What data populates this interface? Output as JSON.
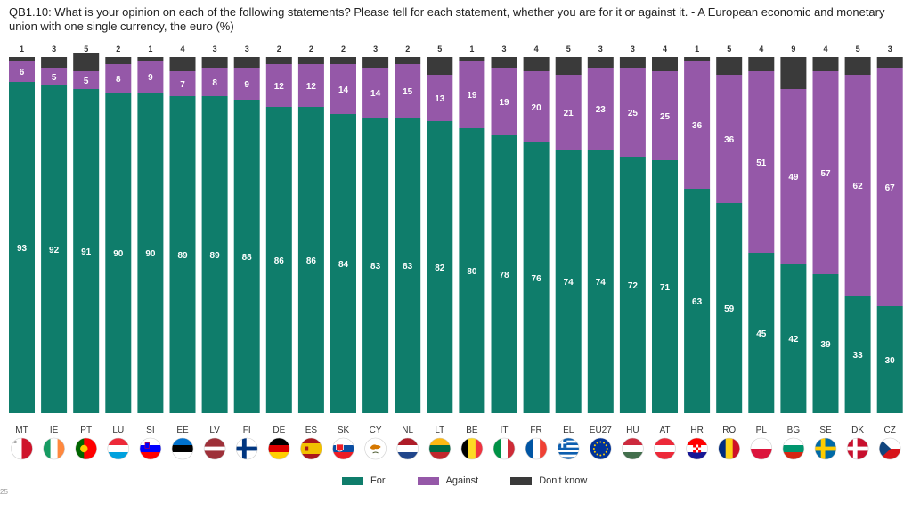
{
  "chart_data": {
    "type": "bar",
    "stacked": true,
    "title": "QB1.10: What is your opinion on each of the following statements? Please tell for each statement, whether you are for it or against it. - A European economic and monetary union with one single currency, the euro (%)",
    "categories": [
      "MT",
      "IE",
      "PT",
      "LU",
      "SI",
      "EE",
      "LV",
      "FI",
      "DE",
      "ES",
      "SK",
      "CY",
      "NL",
      "LT",
      "BE",
      "IT",
      "FR",
      "EL",
      "EU27",
      "HU",
      "AT",
      "HR",
      "RO",
      "PL",
      "BG",
      "SE",
      "DK",
      "CZ"
    ],
    "series": [
      {
        "name": "For",
        "color": "#0f7d6b",
        "values": [
          93,
          92,
          91,
          90,
          90,
          89,
          89,
          88,
          86,
          86,
          84,
          83,
          83,
          82,
          80,
          78,
          76,
          74,
          74,
          72,
          71,
          63,
          59,
          45,
          42,
          39,
          33,
          30
        ]
      },
      {
        "name": "Against",
        "color": "#9558a8",
        "values": [
          6,
          5,
          5,
          8,
          9,
          7,
          8,
          9,
          12,
          12,
          14,
          14,
          15,
          13,
          19,
          19,
          20,
          21,
          23,
          25,
          25,
          36,
          36,
          51,
          49,
          57,
          62,
          67
        ]
      },
      {
        "name": "Don't know",
        "color": "#3a3a3a",
        "values": [
          1,
          3,
          5,
          2,
          1,
          4,
          3,
          3,
          2,
          2,
          2,
          3,
          2,
          5,
          1,
          3,
          4,
          5,
          3,
          3,
          4,
          1,
          5,
          4,
          9,
          4,
          5,
          3
        ]
      }
    ],
    "ylim": [
      0,
      100
    ],
    "xlabel": "",
    "ylabel": "",
    "legend_position": "bottom"
  },
  "flags": {
    "MT": "malta-flag-icon",
    "IE": "ireland-flag-icon",
    "PT": "portugal-flag-icon",
    "LU": "luxembourg-flag-icon",
    "SI": "slovenia-flag-icon",
    "EE": "estonia-flag-icon",
    "LV": "latvia-flag-icon",
    "FI": "finland-flag-icon",
    "DE": "germany-flag-icon",
    "ES": "spain-flag-icon",
    "SK": "slovakia-flag-icon",
    "CY": "cyprus-flag-icon",
    "NL": "netherlands-flag-icon",
    "LT": "lithuania-flag-icon",
    "BE": "belgium-flag-icon",
    "IT": "italy-flag-icon",
    "FR": "france-flag-icon",
    "EL": "greece-flag-icon",
    "EU27": "eu-flag-icon",
    "HU": "hungary-flag-icon",
    "AT": "austria-flag-icon",
    "HR": "croatia-flag-icon",
    "RO": "romania-flag-icon",
    "PL": "poland-flag-icon",
    "BG": "bulgaria-flag-icon",
    "SE": "sweden-flag-icon",
    "DK": "denmark-flag-icon",
    "CZ": "czechia-flag-icon"
  },
  "corner_note": "25"
}
